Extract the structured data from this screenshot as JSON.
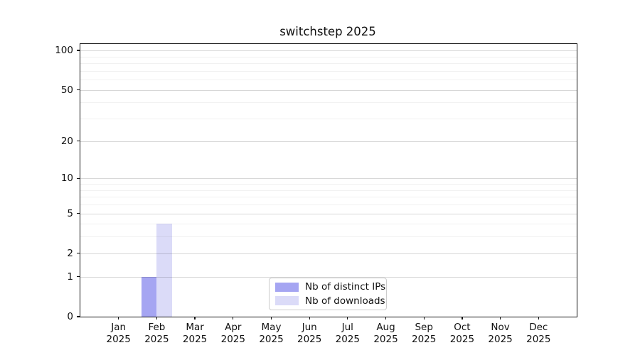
{
  "chart_data": {
    "type": "bar",
    "title": "switchstep 2025",
    "categories": [
      "Jan",
      "Feb",
      "Mar",
      "Apr",
      "May",
      "Jun",
      "Jul",
      "Aug",
      "Sep",
      "Oct",
      "Nov",
      "Dec"
    ],
    "category_year": "2025",
    "series": [
      {
        "name": "Nb of distinct IPs",
        "color": "#a5a5f2",
        "values": [
          0,
          1,
          0,
          0,
          0,
          0,
          0,
          0,
          0,
          0,
          0,
          0
        ]
      },
      {
        "name": "Nb of downloads",
        "color": "#dbdbf8",
        "values": [
          0,
          4,
          0,
          0,
          0,
          0,
          0,
          0,
          0,
          0,
          0,
          0
        ]
      }
    ],
    "y_axis": {
      "scale": "log1p",
      "ticks": [
        0,
        1,
        2,
        5,
        10,
        20,
        50,
        100
      ],
      "minor_gridlines": [
        3,
        4,
        6,
        7,
        8,
        9,
        30,
        40,
        60,
        70,
        80,
        90
      ],
      "ylim": [
        0,
        112
      ]
    },
    "legend_position": "lower center",
    "grid": true
  }
}
